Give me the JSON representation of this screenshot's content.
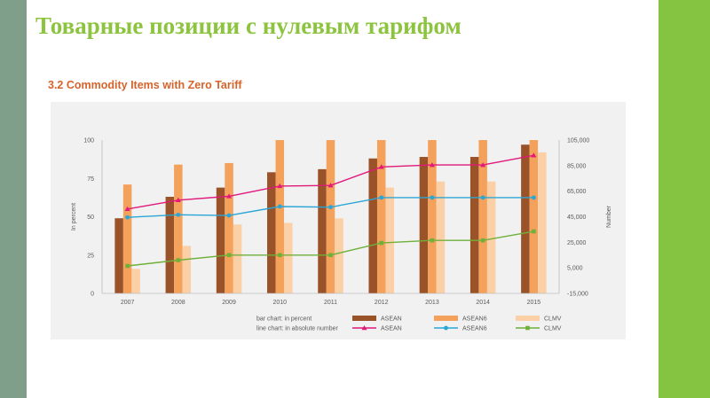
{
  "slide": {
    "title": "Товарные позиции с нулевым тарифом"
  },
  "chart_caption": "3.2 Commodity Items with Zero Tariff",
  "colors": {
    "left_band": "#7f9f8a",
    "right_band": "#85c441",
    "title": "#8cc43f",
    "caption": "#d5632b",
    "panel": "#f1f1f1",
    "asean_bar": "#9a5228",
    "asean6_bar": "#f4a15c",
    "clmv_bar": "#fcd0a6",
    "asean_line": "#e0197a",
    "asean6_line": "#2aa6d6",
    "clmv_line": "#6fb03a"
  },
  "chart_data": {
    "type": "bar",
    "combo": "bar+line",
    "title": "3.2 Commodity Items with Zero Tariff",
    "xlabel": "",
    "ylabel": "In percent",
    "y2label": "Number",
    "categories": [
      "2007",
      "2008",
      "2009",
      "2010",
      "2011",
      "2012",
      "2013",
      "2014",
      "2015"
    ],
    "ylim": [
      0,
      100
    ],
    "y2lim": [
      -15000,
      105000
    ],
    "yticks": [
      "0",
      "25",
      "50",
      "75",
      "100"
    ],
    "y2ticks": [
      "-15,000",
      "5,000",
      "25,000",
      "45,000",
      "65,000",
      "85,000",
      "105,000"
    ],
    "bar_series": [
      {
        "name": "ASEAN",
        "color": "#9a5228",
        "values": [
          49,
          63,
          69,
          79,
          81,
          88,
          89,
          89,
          97
        ]
      },
      {
        "name": "ASEAN6",
        "color": "#f4a15c",
        "values": [
          71,
          84,
          85,
          100,
          100,
          100,
          100,
          100,
          100
        ]
      },
      {
        "name": "CLMV",
        "color": "#fcd0a6",
        "values": [
          16,
          31,
          45,
          46,
          49,
          69,
          73,
          73,
          92
        ]
      }
    ],
    "line_series": [
      {
        "name": "ASEAN",
        "color": "#e0197a",
        "marker": "triangle",
        "values": [
          51000,
          58000,
          61000,
          69000,
          69500,
          84000,
          85500,
          85500,
          93000
        ]
      },
      {
        "name": "ASEAN6",
        "color": "#2aa6d6",
        "marker": "circle",
        "values": [
          44500,
          46500,
          46000,
          53000,
          52500,
          60000,
          60000,
          60000,
          60000
        ]
      },
      {
        "name": "CLMV",
        "color": "#6fb03a",
        "marker": "square",
        "values": [
          6500,
          11000,
          15000,
          15000,
          15000,
          24500,
          26500,
          26500,
          33500
        ]
      }
    ],
    "legend": {
      "position": "bottom",
      "bar_label": "bar chart: in percent",
      "line_label": "line chart: in absolute number",
      "bar_entries": [
        "ASEAN",
        "ASEAN6",
        "CLMV"
      ],
      "line_entries": [
        "ASEAN",
        "ASEAN6",
        "CLMV"
      ]
    },
    "grid": false
  }
}
